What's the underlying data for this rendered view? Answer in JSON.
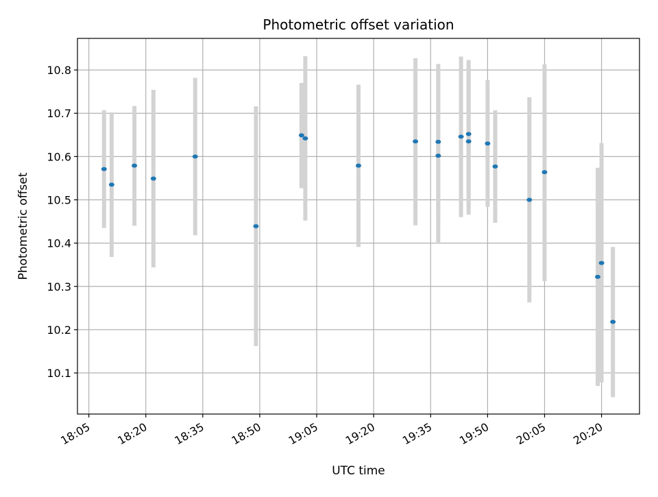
{
  "chart_data": {
    "type": "scatter",
    "title": "Photometric offset variation",
    "xlabel": "UTC time",
    "ylabel": "Photometric offset",
    "x_tick_labels": [
      "18:05",
      "18:20",
      "18:35",
      "18:50",
      "19:05",
      "19:20",
      "19:35",
      "19:50",
      "20:05",
      "20:20"
    ],
    "x_tick_minutes": [
      1085,
      1100,
      1115,
      1130,
      1145,
      1160,
      1175,
      1190,
      1205,
      1220
    ],
    "y_ticks": [
      10.1,
      10.2,
      10.3,
      10.4,
      10.5,
      10.6,
      10.7,
      10.8
    ],
    "y_tick_labels": [
      "10.1",
      "10.2",
      "10.3",
      "10.4",
      "10.5",
      "10.6",
      "10.7",
      "10.8"
    ],
    "xlim": [
      "18:02",
      "20:30"
    ],
    "ylim": [
      10.005,
      10.873
    ],
    "grid": true,
    "marker_color": "#1f77b4",
    "errorbar_color": "#d3d3d3",
    "points": [
      {
        "time": "18:09",
        "y": 10.571,
        "low": 10.435,
        "high": 10.707
      },
      {
        "time": "18:11",
        "y": 10.535,
        "low": 10.368,
        "high": 10.702
      },
      {
        "time": "18:17",
        "y": 10.579,
        "low": 10.44,
        "high": 10.717
      },
      {
        "time": "18:22",
        "y": 10.549,
        "low": 10.344,
        "high": 10.754
      },
      {
        "time": "18:33",
        "y": 10.6,
        "low": 10.418,
        "high": 10.782
      },
      {
        "time": "18:49",
        "y": 10.439,
        "low": 10.162,
        "high": 10.716
      },
      {
        "time": "19:01",
        "y": 10.649,
        "low": 10.527,
        "high": 10.77
      },
      {
        "time": "19:02",
        "y": 10.642,
        "low": 10.452,
        "high": 10.832
      },
      {
        "time": "19:16",
        "y": 10.579,
        "low": 10.391,
        "high": 10.766
      },
      {
        "time": "19:31",
        "y": 10.635,
        "low": 10.441,
        "high": 10.827
      },
      {
        "time": "19:37",
        "y": 10.602,
        "low": 10.398,
        "high": 10.806
      },
      {
        "time": "19:37",
        "y": 10.634,
        "low": 10.455,
        "high": 10.814
      },
      {
        "time": "19:43",
        "y": 10.646,
        "low": 10.46,
        "high": 10.831
      },
      {
        "time": "19:45",
        "y": 10.635,
        "low": 10.466,
        "high": 10.804
      },
      {
        "time": "19:45",
        "y": 10.652,
        "low": 10.481,
        "high": 10.823
      },
      {
        "time": "19:50",
        "y": 10.63,
        "low": 10.484,
        "high": 10.777
      },
      {
        "time": "19:52",
        "y": 10.577,
        "low": 10.447,
        "high": 10.707
      },
      {
        "time": "20:01",
        "y": 10.5,
        "low": 10.263,
        "high": 10.737
      },
      {
        "time": "20:05",
        "y": 10.564,
        "low": 10.312,
        "high": 10.813
      },
      {
        "time": "20:19",
        "y": 10.322,
        "low": 10.07,
        "high": 10.574
      },
      {
        "time": "20:20",
        "y": 10.354,
        "low": 10.078,
        "high": 10.631
      },
      {
        "time": "20:23",
        "y": 10.218,
        "low": 10.044,
        "high": 10.391
      }
    ]
  }
}
